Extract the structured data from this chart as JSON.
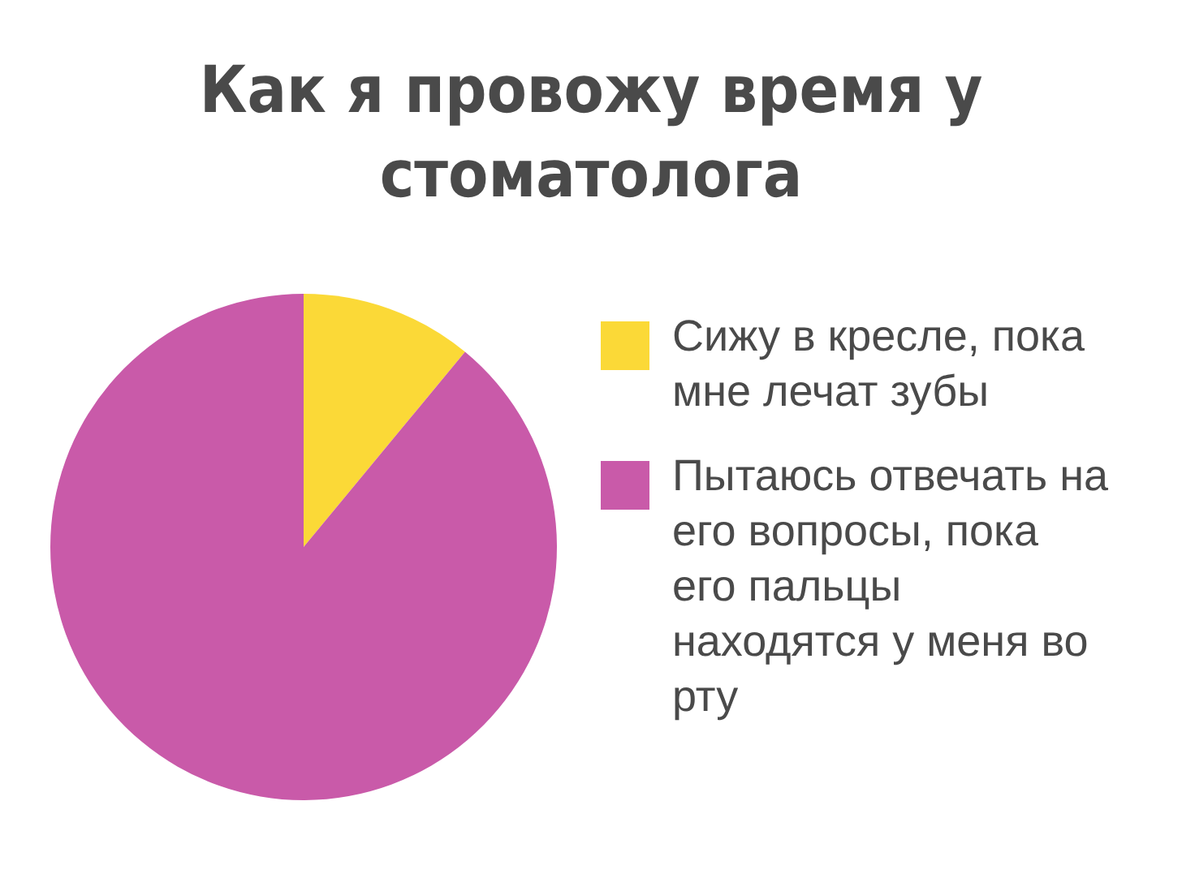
{
  "chart_data": {
    "type": "pie",
    "title": "Как я провожу время у стоматолога",
    "categories": [
      "Сижу в кресле, пока мне лечат зубы",
      "Пытаюсь отвечать на его вопросы, пока его пальцы находятся у меня во рту"
    ],
    "values": [
      11,
      89
    ],
    "colors": [
      "#fbd937",
      "#c95aa9"
    ],
    "legend": "right"
  }
}
